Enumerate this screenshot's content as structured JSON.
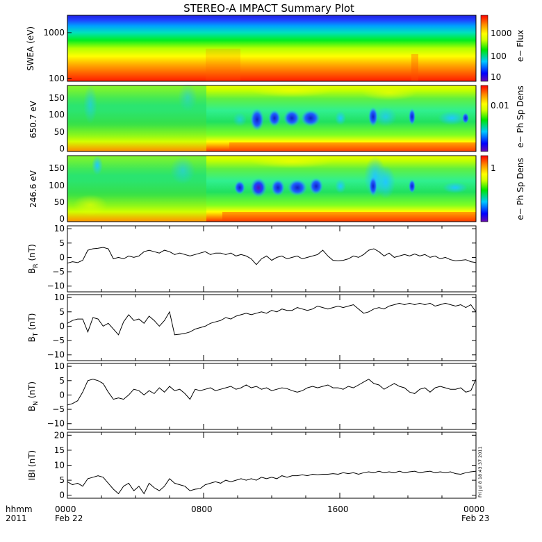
{
  "title": "STEREO-A IMPACT Summary Plot",
  "footer": {
    "left_line1": "hhmm",
    "left_line2": "2011",
    "x_ticks": [
      "0000",
      "0800",
      "1600",
      "0000"
    ],
    "x_dates": [
      {
        "at_hour": 0,
        "text": "Feb 22"
      },
      {
        "at_hour": 24,
        "text": "Feb 23"
      }
    ]
  },
  "timestamp": "Fri Jul 8 18:43:37 2011",
  "colors": {
    "line": "#000000",
    "colormap": [
      "#6a0dad",
      "#0000ff",
      "#00c8ff",
      "#00e600",
      "#c8ff00",
      "#ffff00",
      "#ff8c00",
      "#ff0000"
    ]
  },
  "chart_data": [
    {
      "type": "heatmap",
      "id": "swea",
      "ylabel": "SWEA (eV)",
      "yscale": "log",
      "ylim": [
        90,
        2400
      ],
      "yticks": [
        {
          "v": 100,
          "label": "100"
        },
        {
          "v": 1000,
          "label": "1000"
        }
      ],
      "colorbar_label": "e− Flux",
      "colorbar_ticks": [
        {
          "frac": 0.09,
          "label": "10"
        },
        {
          "frac": 0.38,
          "label": "100"
        },
        {
          "frac": 0.68,
          "label": "1000"
        }
      ],
      "x_hours": [
        0,
        24
      ],
      "description_values": "flux decreasing with energy: red below 150 eV, yellow-green 300-600 eV, blue above 1500 eV"
    },
    {
      "type": "heatmap",
      "id": "pad650",
      "ylabel": "650.7 eV",
      "ylim": [
        -5,
        180
      ],
      "yticks": [
        {
          "v": 0,
          "label": "0"
        },
        {
          "v": 50,
          "label": "50"
        },
        {
          "v": 100,
          "label": "100"
        },
        {
          "v": 150,
          "label": "150"
        }
      ],
      "colorbar_label": "e− Ph Sp Dens",
      "colorbar_ticks": [
        {
          "frac": 0.68,
          "label": "0.01"
        }
      ],
      "x_hours": [
        0,
        24
      ]
    },
    {
      "type": "heatmap",
      "id": "pad246",
      "ylabel": "246.6 eV",
      "ylim": [
        -5,
        180
      ],
      "yticks": [
        {
          "v": 0,
          "label": "0"
        },
        {
          "v": 50,
          "label": "50"
        },
        {
          "v": 100,
          "label": "100"
        },
        {
          "v": 150,
          "label": "150"
        }
      ],
      "colorbar_label": "e− Ph Sp Dens",
      "colorbar_ticks": [
        {
          "frac": 0.72,
          "label": "1"
        }
      ],
      "x_hours": [
        0,
        24
      ]
    },
    {
      "type": "line",
      "id": "br",
      "ylabel_main": "B",
      "ylabel_sub": "R",
      "ylabel_unit": " (nT)",
      "ylim": [
        -12,
        11
      ],
      "yticks": [
        {
          "v": -10,
          "label": "−10"
        },
        {
          "v": -5,
          "label": "−5"
        },
        {
          "v": 0,
          "label": "0"
        },
        {
          "v": 5,
          "label": "5"
        },
        {
          "v": 10,
          "label": "10"
        }
      ],
      "x": [
        0,
        0.3,
        0.6,
        0.9,
        1.2,
        1.5,
        1.8,
        2.1,
        2.4,
        2.7,
        3.0,
        3.3,
        3.6,
        3.9,
        4.2,
        4.5,
        4.8,
        5.1,
        5.4,
        5.7,
        6.0,
        6.3,
        6.6,
        6.9,
        7.2,
        7.5,
        7.8,
        8.1,
        8.4,
        8.7,
        9.0,
        9.3,
        9.6,
        9.9,
        10.2,
        10.5,
        10.8,
        11.1,
        11.4,
        11.7,
        12.0,
        12.3,
        12.6,
        12.9,
        13.2,
        13.5,
        13.8,
        14.1,
        14.4,
        14.7,
        15.0,
        15.3,
        15.6,
        15.9,
        16.2,
        16.5,
        16.8,
        17.1,
        17.4,
        17.7,
        18.0,
        18.3,
        18.6,
        18.9,
        19.2,
        19.5,
        19.8,
        20.1,
        20.4,
        20.7,
        21.0,
        21.3,
        21.6,
        21.9,
        22.2,
        22.5,
        22.8,
        23.1,
        23.4,
        23.7,
        24.0
      ],
      "y": [
        -2,
        -1.5,
        -1.8,
        -1,
        2.5,
        3,
        3.2,
        3.5,
        3,
        -0.5,
        0,
        -0.5,
        0.5,
        0,
        0.5,
        2,
        2.5,
        2,
        1.5,
        2.5,
        2,
        1,
        1.5,
        1,
        0.5,
        1,
        1.5,
        2,
        1,
        1.5,
        1.5,
        1,
        1.5,
        0.5,
        1,
        0.5,
        -0.5,
        -2.5,
        -0.5,
        0.5,
        -1,
        0,
        0.5,
        -0.5,
        0,
        0.5,
        -0.5,
        0,
        0.5,
        1,
        2.5,
        0.5,
        -1,
        -1.2,
        -1,
        -0.5,
        0.5,
        0,
        1,
        2.5,
        3,
        2,
        0.5,
        1.5,
        0,
        0.5,
        1,
        0.5,
        1.2,
        0.5,
        1,
        0,
        0.5,
        -0.5,
        0,
        -0.8,
        -1.2,
        -1,
        -0.8,
        -1.5,
        -1.8
      ]
    },
    {
      "type": "line",
      "id": "bt",
      "ylabel_main": "B",
      "ylabel_sub": "T",
      "ylabel_unit": " (nT)",
      "ylim": [
        -12,
        11
      ],
      "yticks": [
        {
          "v": -10,
          "label": "−10"
        },
        {
          "v": -5,
          "label": "−5"
        },
        {
          "v": 0,
          "label": "0"
        },
        {
          "v": 5,
          "label": "5"
        },
        {
          "v": 10,
          "label": "10"
        }
      ],
      "x": [
        0,
        0.3,
        0.6,
        0.9,
        1.2,
        1.5,
        1.8,
        2.1,
        2.4,
        2.7,
        3.0,
        3.3,
        3.6,
        3.9,
        4.2,
        4.5,
        4.8,
        5.1,
        5.4,
        5.7,
        6.0,
        6.3,
        6.6,
        6.9,
        7.2,
        7.5,
        7.8,
        8.1,
        8.4,
        8.7,
        9.0,
        9.3,
        9.6,
        9.9,
        10.2,
        10.5,
        10.8,
        11.1,
        11.4,
        11.7,
        12.0,
        12.3,
        12.6,
        12.9,
        13.2,
        13.5,
        13.8,
        14.1,
        14.4,
        14.7,
        15.0,
        15.3,
        15.6,
        15.9,
        16.2,
        16.5,
        16.8,
        17.1,
        17.4,
        17.7,
        18.0,
        18.3,
        18.6,
        18.9,
        19.2,
        19.5,
        19.8,
        20.1,
        20.4,
        20.7,
        21.0,
        21.3,
        21.6,
        21.9,
        22.2,
        22.5,
        22.8,
        23.1,
        23.4,
        23.7,
        24.0
      ],
      "y": [
        1,
        2,
        2.5,
        2.5,
        -2,
        3,
        2.5,
        0,
        1,
        -1,
        -3,
        1.5,
        4,
        2,
        2.5,
        1,
        3.5,
        2,
        0,
        2,
        5,
        -3,
        -2.8,
        -2.5,
        -2,
        -1,
        -0.5,
        0,
        1,
        1.5,
        2,
        3,
        2.5,
        3.5,
        4,
        4.5,
        4,
        4.5,
        5,
        4.5,
        5.5,
        5,
        6,
        5.5,
        5.5,
        6.5,
        6,
        5.5,
        6,
        7,
        6.5,
        6,
        6.5,
        7,
        6.5,
        7,
        7.5,
        6,
        4.5,
        5,
        6,
        6.5,
        6,
        7,
        7.5,
        8,
        7.5,
        8,
        7.5,
        8,
        7.5,
        8,
        7,
        7.5,
        8,
        7.5,
        7,
        7.5,
        6.5,
        7.5,
        5
      ]
    },
    {
      "type": "line",
      "id": "bn",
      "ylabel_main": "B",
      "ylabel_sub": "N",
      "ylabel_unit": " (nT)",
      "ylim": [
        -12,
        11
      ],
      "yticks": [
        {
          "v": -10,
          "label": "−10"
        },
        {
          "v": -5,
          "label": "−5"
        },
        {
          "v": 0,
          "label": "0"
        },
        {
          "v": 5,
          "label": "5"
        },
        {
          "v": 10,
          "label": "10"
        }
      ],
      "x": [
        0,
        0.3,
        0.6,
        0.9,
        1.2,
        1.5,
        1.8,
        2.1,
        2.4,
        2.7,
        3.0,
        3.3,
        3.6,
        3.9,
        4.2,
        4.5,
        4.8,
        5.1,
        5.4,
        5.7,
        6.0,
        6.3,
        6.6,
        6.9,
        7.2,
        7.5,
        7.8,
        8.1,
        8.4,
        8.7,
        9.0,
        9.3,
        9.6,
        9.9,
        10.2,
        10.5,
        10.8,
        11.1,
        11.4,
        11.7,
        12.0,
        12.3,
        12.6,
        12.9,
        13.2,
        13.5,
        13.8,
        14.1,
        14.4,
        14.7,
        15.0,
        15.3,
        15.6,
        15.9,
        16.2,
        16.5,
        16.8,
        17.1,
        17.4,
        17.7,
        18.0,
        18.3,
        18.6,
        18.9,
        19.2,
        19.5,
        19.8,
        20.1,
        20.4,
        20.7,
        21.0,
        21.3,
        21.6,
        21.9,
        22.2,
        22.5,
        22.8,
        23.1,
        23.4,
        23.7,
        24.0
      ],
      "y": [
        -3.5,
        -3,
        -2,
        1,
        5,
        5.5,
        5,
        4,
        1,
        -1.5,
        -1,
        -1.5,
        0,
        2,
        1.5,
        0,
        1.5,
        0.5,
        2.5,
        1,
        3,
        1.5,
        2,
        0.5,
        -1.5,
        2,
        1.5,
        2,
        2.5,
        1.5,
        2,
        2.5,
        3,
        2,
        2.5,
        3.5,
        2.5,
        3,
        2,
        2.5,
        1.5,
        2,
        2.5,
        2.2,
        1.5,
        1,
        1.5,
        2.5,
        3,
        2.5,
        3,
        3.5,
        2.5,
        2.5,
        2,
        3,
        2.5,
        3.5,
        4.5,
        5.5,
        4,
        3.5,
        2,
        3,
        4,
        3,
        2.5,
        1,
        0.5,
        2,
        2.5,
        1,
        2.5,
        3,
        2.5,
        2,
        2,
        2.5,
        1,
        1.5,
        5.5
      ]
    },
    {
      "type": "line",
      "id": "bmag",
      "ylabel_main": "IBI",
      "ylabel_sub": "",
      "ylabel_unit": " (nT)",
      "ylim": [
        -1,
        21
      ],
      "yticks": [
        {
          "v": 0,
          "label": "0"
        },
        {
          "v": 5,
          "label": "5"
        },
        {
          "v": 10,
          "label": "10"
        },
        {
          "v": 15,
          "label": "15"
        },
        {
          "v": 20,
          "label": "20"
        }
      ],
      "x": [
        0,
        0.3,
        0.6,
        0.9,
        1.2,
        1.5,
        1.8,
        2.1,
        2.4,
        2.7,
        3.0,
        3.3,
        3.6,
        3.9,
        4.2,
        4.5,
        4.8,
        5.1,
        5.4,
        5.7,
        6.0,
        6.3,
        6.6,
        6.9,
        7.2,
        7.5,
        7.8,
        8.1,
        8.4,
        8.7,
        9.0,
        9.3,
        9.6,
        9.9,
        10.2,
        10.5,
        10.8,
        11.1,
        11.4,
        11.7,
        12.0,
        12.3,
        12.6,
        12.9,
        13.2,
        13.5,
        13.8,
        14.1,
        14.4,
        14.7,
        15.0,
        15.3,
        15.6,
        15.9,
        16.2,
        16.5,
        16.8,
        17.1,
        17.4,
        17.7,
        18.0,
        18.3,
        18.6,
        18.9,
        19.2,
        19.5,
        19.8,
        20.1,
        20.4,
        20.7,
        21.0,
        21.3,
        21.6,
        21.9,
        22.2,
        22.5,
        22.8,
        23.1,
        23.4,
        23.7,
        24.0
      ],
      "y": [
        4.5,
        3.5,
        4,
        3,
        5.5,
        6,
        6.5,
        6,
        4,
        2,
        0.5,
        3,
        4,
        1.5,
        3,
        0.5,
        4,
        2.5,
        1.5,
        3,
        5.5,
        4,
        3.5,
        3,
        1.5,
        2,
        2.2,
        3.5,
        4,
        4.5,
        4,
        5,
        4.5,
        5,
        5.5,
        5,
        5.5,
        5,
        6,
        5.5,
        6,
        5.5,
        6.5,
        6,
        6.5,
        6.5,
        6.8,
        6.5,
        7,
        6.8,
        7,
        7,
        7.2,
        7,
        7.5,
        7.2,
        7.5,
        7,
        7.5,
        7.8,
        7.5,
        8,
        7.5,
        7.8,
        7.5,
        8,
        7.5,
        7.8,
        8,
        7.5,
        7.8,
        8,
        7.5,
        7.8,
        7.5,
        7.8,
        7.2,
        7,
        7.5,
        7.8,
        8
      ]
    }
  ]
}
